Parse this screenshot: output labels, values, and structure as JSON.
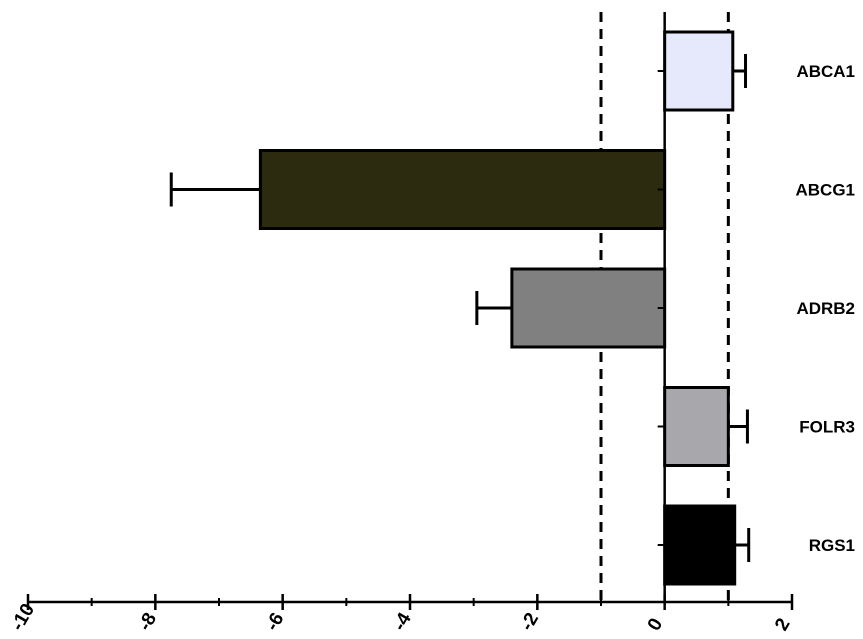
{
  "chart_data": {
    "type": "bar",
    "orientation": "horizontal",
    "title": "",
    "xlabel": "",
    "ylabel": "",
    "xlim": [
      -10,
      2
    ],
    "x_ticks": [
      -10,
      -8,
      -6,
      -4,
      -2,
      0,
      2
    ],
    "x_tick_labels": [
      "-10",
      "-8",
      "-6",
      "-4",
      "-2",
      "0",
      "2"
    ],
    "reference_lines": [
      -1,
      1
    ],
    "reference_line_style": "dashed",
    "grid": false,
    "legend": "none",
    "categories": [
      "ABCA1",
      "ABCG1",
      "ADRB2",
      "FOLR3",
      "RGS1"
    ],
    "values": [
      1.07,
      -6.35,
      -2.4,
      1.0,
      1.1
    ],
    "errors": [
      0.2,
      1.4,
      0.55,
      0.3,
      0.22
    ],
    "colors": [
      "#e6e8fc",
      "#2c2a0f",
      "#808080",
      "#a8a8ac",
      "#000000"
    ]
  }
}
